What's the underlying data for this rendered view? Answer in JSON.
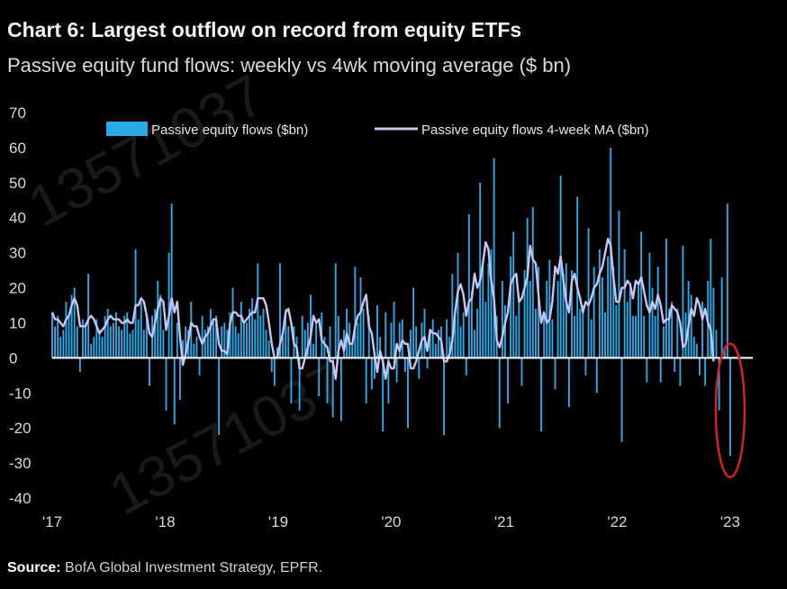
{
  "header": {
    "title": "Chart 6: Largest outflow on record from equity ETFs",
    "subtitle": "Passive equity fund flows: weekly vs 4wk moving average ($ bn)"
  },
  "footer": {
    "source_label": "Source:",
    "source_text": "BofA Global Investment Strategy, EPFR."
  },
  "watermark": {
    "text_1": "13571037",
    "text_2": "13571037"
  },
  "colors": {
    "bars": "#2aa9e6",
    "ma_line": "#c9c3f2",
    "highlight": "#e0201c",
    "background": "#000000"
  },
  "chart_data": {
    "type": "bar",
    "title": "Chart 6: Largest outflow on record from equity ETFs",
    "subtitle": "Passive equity fund flows: weekly vs 4wk moving average ($ bn)",
    "ylim": [
      -40,
      70
    ],
    "yticks": [
      70,
      60,
      50,
      40,
      30,
      20,
      10,
      0,
      -10,
      -20,
      -30,
      -40
    ],
    "xlim": [
      2017.0,
      2023.2
    ],
    "xticks": [
      {
        "label": "'17",
        "value": 2017
      },
      {
        "label": "'18",
        "value": 2018
      },
      {
        "label": "'19",
        "value": 2019
      },
      {
        "label": "'20",
        "value": 2020
      },
      {
        "label": "'21",
        "value": 2021
      },
      {
        "label": "'22",
        "value": 2022
      },
      {
        "label": "'23",
        "value": 2023
      }
    ],
    "legend": {
      "placement": "top",
      "bars_label": "Passive equity flows ($bn)",
      "line_label": "Passive equity flows 4-week MA ($bn)"
    },
    "annotation": "red ellipse highlighting the latest weekly outflow (about -28 $bn)",
    "series": [
      {
        "name": "Passive equity flows ($bn)",
        "kind": "bar",
        "values": [
          13,
          9,
          12,
          6,
          8,
          16,
          12,
          18,
          20,
          9,
          -4,
          11,
          10,
          24,
          4,
          6,
          11,
          8,
          6,
          12,
          14,
          9,
          10,
          13,
          9,
          8,
          12,
          13,
          7,
          8,
          31,
          11,
          16,
          8,
          12,
          -8,
          12,
          14,
          22,
          18,
          8,
          -15,
          30,
          44,
          -19,
          10,
          -12,
          5,
          9,
          8,
          16,
          4,
          6,
          -5,
          12,
          8,
          9,
          14,
          11,
          12,
          -22,
          9,
          10,
          8,
          13,
          20,
          9,
          7,
          16,
          10,
          10,
          14,
          17,
          11,
          27,
          12,
          14,
          8,
          5,
          -4,
          -8,
          3,
          27,
          6,
          14,
          9,
          -13,
          9,
          6,
          -15,
          12,
          8,
          10,
          18,
          4,
          10,
          -11,
          13,
          6,
          -13,
          9,
          -17,
          27,
          12,
          -18,
          8,
          14,
          10,
          4,
          26,
          10,
          23,
          14,
          -13,
          12,
          -9,
          -6,
          15,
          6,
          -21,
          13,
          -13,
          10,
          16,
          -7,
          10,
          11,
          -4,
          -20,
          8,
          20,
          9,
          -6,
          10,
          14,
          -3,
          8,
          11,
          4,
          8,
          9,
          -22,
          11,
          6,
          24,
          11,
          30,
          9,
          13,
          -5,
          41,
          19,
          8,
          14,
          50,
          28,
          16,
          27,
          31,
          57,
          12,
          -20,
          22,
          15,
          -13,
          29,
          36,
          12,
          18,
          -8,
          25,
          40,
          22,
          43,
          14,
          26,
          -21,
          13,
          22,
          28,
          11,
          -9,
          22,
          52,
          24,
          27,
          -14,
          25,
          12,
          46,
          14,
          15,
          -5,
          37,
          11,
          26,
          -10,
          31,
          23,
          13,
          29,
          60,
          26,
          15,
          42,
          -24,
          31,
          16,
          20,
          12,
          12,
          22,
          36,
          12,
          -7,
          30,
          20,
          12,
          26,
          -7,
          9,
          34,
          14,
          16,
          -4,
          14,
          -8,
          32,
          13,
          22,
          18,
          6,
          4,
          -5,
          16,
          -8,
          22,
          34,
          20,
          8,
          -15,
          23,
          3,
          44,
          -28
        ]
      },
      {
        "name": "Passive equity flows 4-week MA ($bn)",
        "kind": "line",
        "values": [
          13,
          11,
          11,
          10,
          9,
          11,
          12,
          15,
          17,
          15,
          9,
          9,
          9,
          11,
          12,
          11,
          9,
          7,
          8,
          9,
          11,
          12,
          11,
          11,
          11,
          10,
          10,
          11,
          10,
          10,
          15,
          15,
          17,
          16,
          12,
          7,
          6,
          10,
          14,
          17,
          16,
          8,
          12,
          17,
          13,
          16,
          6,
          -2,
          1,
          5,
          10,
          9,
          9,
          6,
          4,
          6,
          7,
          9,
          11,
          11,
          4,
          2,
          2,
          1,
          10,
          13,
          13,
          12,
          12,
          10,
          11,
          12,
          13,
          13,
          17,
          17,
          17,
          15,
          10,
          4,
          0,
          0,
          4,
          7,
          13,
          14,
          10,
          4,
          3,
          -3,
          -3,
          0,
          3,
          6,
          12,
          10,
          11,
          5,
          4,
          3,
          -1,
          -1,
          -6,
          2,
          5,
          2,
          7,
          4,
          4,
          9,
          12,
          13,
          16,
          18,
          9,
          7,
          1,
          -4,
          2,
          -1,
          -6,
          -1,
          -3,
          -3,
          4,
          2,
          5,
          4,
          4,
          -3,
          -3,
          -1,
          2,
          5,
          6,
          2,
          8,
          7,
          7,
          6,
          5,
          -1,
          -1,
          1,
          5,
          13,
          19,
          21,
          18,
          12,
          16,
          17,
          24,
          20,
          22,
          27,
          33,
          31,
          22,
          17,
          5,
          3,
          6,
          10,
          13,
          21,
          23,
          24,
          16,
          17,
          20,
          23,
          32,
          28,
          27,
          18,
          10,
          13,
          10,
          11,
          16,
          26,
          24,
          29,
          22,
          16,
          13,
          22,
          24,
          20,
          17,
          13,
          16,
          15,
          17,
          20,
          21,
          24,
          26,
          30,
          34,
          32,
          23,
          16,
          16,
          20,
          20,
          22,
          21,
          17,
          22,
          21,
          23,
          19,
          15,
          13,
          16,
          14,
          18,
          15,
          10,
          11,
          11,
          15,
          14,
          13,
          10,
          3,
          4,
          9,
          14,
          12,
          17,
          15,
          11,
          14,
          10,
          8,
          -1
        ]
      }
    ]
  }
}
